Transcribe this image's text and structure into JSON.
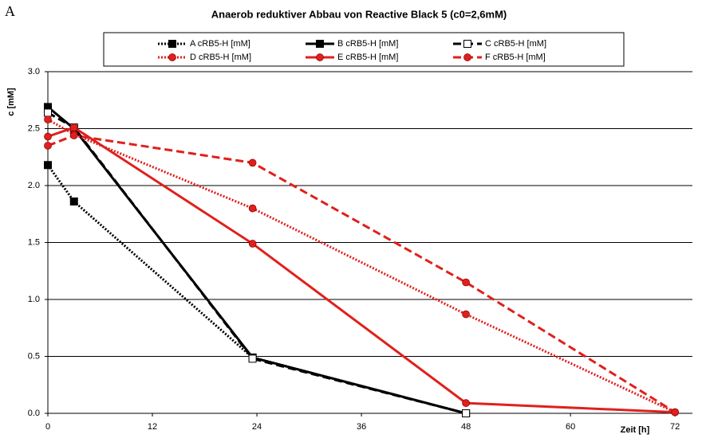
{
  "panel_label": "A",
  "chart_data": {
    "type": "line",
    "title": "Anaerob reduktiver Abbau von Reactive Black 5  (c0=2,6mM)",
    "x_label": "Zeit [h]",
    "y_label": "c [mM]",
    "xlim": [
      0,
      74
    ],
    "xticks": [
      0,
      12,
      24,
      36,
      48,
      60,
      72
    ],
    "ylim": [
      0,
      3
    ],
    "yticks": [
      {
        "value": 0,
        "label": "0.0"
      },
      0.5,
      {
        "value": 1,
        "label": "1.0"
      },
      1.5,
      {
        "value": 2,
        "label": "2.0"
      },
      2.5,
      {
        "value": 3,
        "label": "3.0"
      }
    ],
    "grid": true,
    "series": [
      {
        "name": "A cRB5-H [mM]",
        "color": "#000000",
        "dash": "dotted",
        "marker": "square",
        "marker_fill": "#000000",
        "x": [
          0,
          3,
          23.5,
          48
        ],
        "values": [
          2.18,
          1.86,
          0.49,
          0.0
        ]
      },
      {
        "name": "B cRB5-H [mM]",
        "color": "#000000",
        "dash": "solid",
        "marker": "square",
        "marker_fill": "#000000",
        "x": [
          0,
          3,
          23.5,
          48
        ],
        "values": [
          2.69,
          2.5,
          0.49,
          0.0
        ]
      },
      {
        "name": "C cRB5-H [mM]",
        "color": "#000000",
        "dash": "dashed",
        "marker": "square",
        "marker_fill": "#ffffff",
        "x": [
          0,
          3,
          23.5,
          48
        ],
        "values": [
          2.64,
          2.51,
          0.48,
          0.0
        ]
      },
      {
        "name": "D cRB5-H [mM]",
        "color": "#e0201c",
        "dash": "dotted",
        "marker": "circle",
        "marker_fill": "#e0201c",
        "x": [
          0,
          3,
          23.5,
          48,
          72
        ],
        "values": [
          2.58,
          2.45,
          1.8,
          0.87,
          0.01
        ]
      },
      {
        "name": "E cRB5-H [mM]",
        "color": "#e0201c",
        "dash": "solid",
        "marker": "circle",
        "marker_fill": "#e0201c",
        "x": [
          0,
          3,
          23.5,
          48,
          72
        ],
        "values": [
          2.43,
          2.51,
          1.49,
          0.09,
          0.01
        ]
      },
      {
        "name": "F cRB5-H [mM]",
        "color": "#e0201c",
        "dash": "dashed",
        "marker": "circle",
        "marker_fill": "#e0201c",
        "x": [
          0,
          3,
          23.5,
          48,
          72
        ],
        "values": [
          2.35,
          2.44,
          2.2,
          1.15,
          0.01
        ]
      }
    ]
  }
}
